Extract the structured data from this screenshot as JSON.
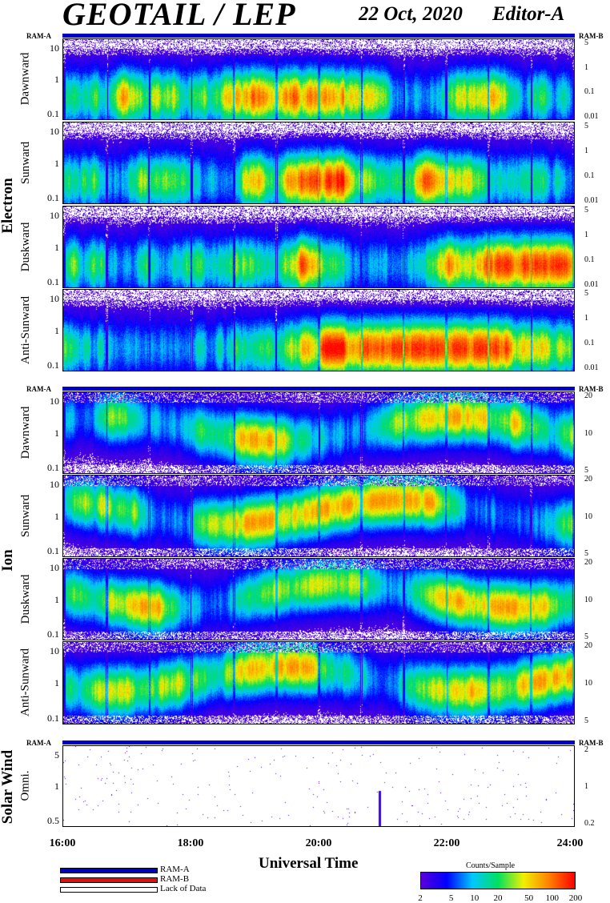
{
  "header": {
    "title": "GEOTAIL / LEP",
    "date": "22 Oct, 2020",
    "editor": "Editor-A"
  },
  "ram_labels": {
    "left": "RAM-A",
    "right": "RAM-B"
  },
  "chart_data": {
    "type": "heatmap",
    "x_axis": {
      "label": "Universal Time",
      "ticks": [
        "16:00",
        "18:00",
        "20:00",
        "22:00",
        "24:00"
      ],
      "range_hours": [
        16,
        24
      ]
    },
    "groups": [
      {
        "name": "Electron",
        "panels": [
          "Dawnward",
          "Sunward",
          "Duskward",
          "Anti-Sunward"
        ]
      },
      {
        "name": "Ion",
        "panels": [
          "Dawnward",
          "Sunward",
          "Duskward",
          "Anti-Sunward"
        ]
      },
      {
        "name": "Solar Wind",
        "panels": [
          "Omni."
        ]
      }
    ],
    "panels": [
      {
        "group": "Electron",
        "name": "Dawnward",
        "left_ticks": [
          "10",
          "1",
          "0.1"
        ],
        "right_ticks": [
          "5",
          "1",
          "0.1",
          "0.01"
        ]
      },
      {
        "group": "Electron",
        "name": "Sunward",
        "left_ticks": [
          "10",
          "1",
          "0.1"
        ],
        "right_ticks": [
          "5",
          "1",
          "0.1",
          "0.01"
        ]
      },
      {
        "group": "Electron",
        "name": "Duskward",
        "left_ticks": [
          "10",
          "1",
          "0.1"
        ],
        "right_ticks": [
          "5",
          "1",
          "0.1",
          "0.01"
        ]
      },
      {
        "group": "Electron",
        "name": "Anti-Sunward",
        "left_ticks": [
          "10",
          "1",
          "0.1"
        ],
        "right_ticks": [
          "5",
          "1",
          "0.1",
          "0.01"
        ]
      },
      {
        "group": "Ion",
        "name": "Dawnward",
        "left_ticks": [
          "10",
          "1",
          "0.1"
        ],
        "right_ticks": [
          "20",
          "10",
          "5"
        ]
      },
      {
        "group": "Ion",
        "name": "Sunward",
        "left_ticks": [
          "10",
          "1",
          "0.1"
        ],
        "right_ticks": [
          "20",
          "10",
          "5"
        ]
      },
      {
        "group": "Ion",
        "name": "Duskward",
        "left_ticks": [
          "10",
          "1",
          "0.1"
        ],
        "right_ticks": [
          "20",
          "10",
          "5"
        ]
      },
      {
        "group": "Ion",
        "name": "Anti-Sunward",
        "left_ticks": [
          "10",
          "1",
          "0.1"
        ],
        "right_ticks": [
          "20",
          "10",
          "5"
        ]
      },
      {
        "group": "Solar Wind",
        "name": "Omni.",
        "left_ticks": [
          "5",
          "1",
          "0.5"
        ],
        "right_ticks": [
          "2",
          "1",
          "0.2"
        ]
      }
    ],
    "colorbar": {
      "title": "Counts/Sample",
      "ticks": [
        "2",
        "5",
        "10",
        "20",
        "50",
        "100",
        "200"
      ],
      "range": [
        2,
        200
      ],
      "scale": "log",
      "colors": [
        "#5a00d8",
        "#0000ff",
        "#00c8ff",
        "#00e060",
        "#f0f000",
        "#ff8000",
        "#ff0000"
      ]
    },
    "legend": [
      {
        "label": "RAM-A",
        "color": "#0000c8"
      },
      {
        "label": "RAM-B",
        "color": "#e01010"
      },
      {
        "label": "Lack of Data",
        "color": "#ffffff"
      }
    ]
  }
}
